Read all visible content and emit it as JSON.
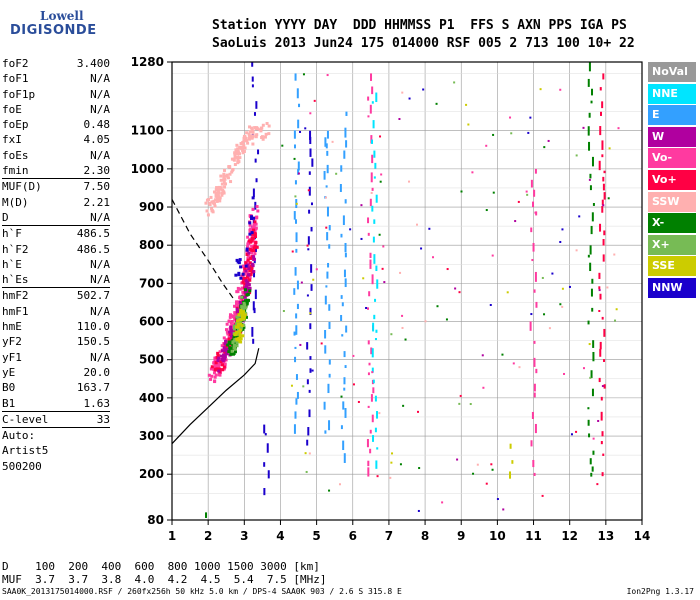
{
  "logo": {
    "line1": "Lowell",
    "line2": "DIGISONDE"
  },
  "header": {
    "line1": "Station YYYY DAY  DDD HHMMSS P1  FFS S AXN PPS IGA PS",
    "line2": "SaoLuis 2013 Jun24 175 014000 RSF 005 2 713 100 10+ 22"
  },
  "params": [
    {
      "key": "foF2",
      "value": "3.400"
    },
    {
      "key": "foF1",
      "value": "N/A"
    },
    {
      "key": "foF1p",
      "value": "N/A"
    },
    {
      "key": "foE",
      "value": "N/A"
    },
    {
      "key": "foEp",
      "value": "0.48"
    },
    {
      "key": "fxI",
      "value": "4.05"
    },
    {
      "key": "foEs",
      "value": "N/A"
    },
    {
      "key": "fmin",
      "value": "2.30",
      "sep": true
    },
    {
      "key": "MUF(D)",
      "value": "7.50"
    },
    {
      "key": "M(D)",
      "value": "2.21"
    },
    {
      "key": "D",
      "value": "N/A",
      "sep": true
    },
    {
      "key": "h`F",
      "value": "486.5"
    },
    {
      "key": "h`F2",
      "value": "486.5"
    },
    {
      "key": "h`E",
      "value": "N/A"
    },
    {
      "key": "h`Es",
      "value": "N/A",
      "sep": true
    },
    {
      "key": "hmF2",
      "value": "502.7"
    },
    {
      "key": "hmF1",
      "value": "N/A"
    },
    {
      "key": "hmE",
      "value": "110.0"
    },
    {
      "key": "yF2",
      "value": "150.5"
    },
    {
      "key": "yF1",
      "value": "N/A"
    },
    {
      "key": "yE",
      "value": "20.0"
    },
    {
      "key": "B0",
      "value": "163.7"
    },
    {
      "key": "B1",
      "value": "1.63",
      "sep": true
    },
    {
      "key": "C-level",
      "value": "33",
      "sep": true
    }
  ],
  "auto": {
    "line1": "Auto:",
    "line2": "Artist5",
    "line3": "500200"
  },
  "legend": [
    {
      "label": "NoVal",
      "color": "#999999"
    },
    {
      "label": "NNE",
      "color": "#00e5ff"
    },
    {
      "label": "E",
      "color": "#33a0ff"
    },
    {
      "label": "W",
      "color": "#b0009f"
    },
    {
      "label": "Vo-",
      "color": "#ff3aa0"
    },
    {
      "label": "Vo+",
      "color": "#ff0044"
    },
    {
      "label": "SSW",
      "color": "#ffb0b0"
    },
    {
      "label": "X-",
      "color": "#008000"
    },
    {
      "label": "X+",
      "color": "#77bb55"
    },
    {
      "label": "SSE",
      "color": "#cccc00"
    },
    {
      "label": "NNW",
      "color": "#1a00cc"
    }
  ],
  "dtable": {
    "line1": "D    100  200  400  600  800 1000 1500 3000 [km]",
    "line2": "MUF  3.7  3.7  3.8  4.0  4.2  4.5  5.4  7.5 [MHz]"
  },
  "footer": {
    "left": "SAA0K_2013175014000.RSF / 260fx256h 50 kHz 5.0 km / DPS-4 SAA0K 903 / 2.6 S 315.8 E",
    "right": "Ion2Png 1.3.17"
  },
  "chart_data": {
    "type": "scatter",
    "title": "",
    "xlabel": "",
    "ylabel": "",
    "xlim": [
      1,
      14
    ],
    "ylim": [
      80,
      1280
    ],
    "x_ticks": [
      1,
      2,
      3,
      4,
      5,
      6,
      7,
      8,
      9,
      10,
      11,
      12,
      13,
      14
    ],
    "y_ticks": [
      80,
      200,
      300,
      400,
      500,
      600,
      700,
      800,
      900,
      1000,
      1100,
      1280
    ],
    "trace_curve": [
      {
        "x": 1.0,
        "y": 280
      },
      {
        "x": 1.5,
        "y": 330
      },
      {
        "x": 2.0,
        "y": 375
      },
      {
        "x": 2.5,
        "y": 420
      },
      {
        "x": 3.0,
        "y": 460
      },
      {
        "x": 3.3,
        "y": 490
      },
      {
        "x": 3.4,
        "y": 530
      }
    ],
    "dashed_curve": [
      {
        "x": 1.0,
        "y": 920
      },
      {
        "x": 1.5,
        "y": 830
      },
      {
        "x": 2.0,
        "y": 760
      },
      {
        "x": 2.4,
        "y": 700
      },
      {
        "x": 2.7,
        "y": 660
      }
    ],
    "clusters": [
      {
        "name": "Vo-",
        "color": "#ff3aa0",
        "count": 260,
        "pts": [
          [
            2.1,
            460
          ],
          [
            2.4,
            500
          ],
          [
            2.6,
            560
          ],
          [
            2.8,
            620
          ],
          [
            3.0,
            700
          ],
          [
            3.2,
            800
          ],
          [
            3.3,
            880
          ]
        ],
        "spread": [
          0.12,
          25
        ]
      },
      {
        "name": "Vo+",
        "color": "#ff0044",
        "count": 140,
        "pts": [
          [
            2.2,
            470
          ],
          [
            2.6,
            540
          ],
          [
            2.9,
            620
          ],
          [
            3.1,
            720
          ],
          [
            3.3,
            840
          ]
        ],
        "spread": [
          0.1,
          25
        ]
      },
      {
        "name": "W",
        "color": "#b0009f",
        "count": 120,
        "pts": [
          [
            2.3,
            480
          ],
          [
            2.7,
            560
          ],
          [
            3.0,
            650
          ],
          [
            3.2,
            760
          ]
        ],
        "spread": [
          0.1,
          25
        ]
      },
      {
        "name": "X-",
        "color": "#008000",
        "count": 90,
        "pts": [
          [
            2.6,
            520
          ],
          [
            2.9,
            600
          ],
          [
            3.1,
            680
          ]
        ],
        "spread": [
          0.08,
          25
        ]
      },
      {
        "name": "X+",
        "color": "#77bb55",
        "count": 60,
        "pts": [
          [
            2.7,
            540
          ],
          [
            3.0,
            640
          ]
        ],
        "spread": [
          0.08,
          25
        ]
      },
      {
        "name": "SSE",
        "color": "#cccc00",
        "count": 40,
        "pts": [
          [
            2.8,
            560
          ],
          [
            3.0,
            620
          ]
        ],
        "spread": [
          0.08,
          25
        ]
      },
      {
        "name": "SSW",
        "color": "#ffb0b0",
        "count": 150,
        "pts": [
          [
            2.0,
            890
          ],
          [
            2.3,
            940
          ],
          [
            2.6,
            1000
          ],
          [
            2.9,
            1050
          ],
          [
            3.2,
            1090
          ],
          [
            3.6,
            1100
          ]
        ],
        "spread": [
          0.1,
          20
        ]
      },
      {
        "name": "NNW",
        "color": "#1a00cc",
        "count": 20,
        "pts": [
          [
            2.8,
            720
          ],
          [
            3.3,
            880
          ]
        ],
        "spread": [
          0.05,
          60
        ]
      }
    ],
    "vertical_streaks": [
      {
        "x": 4.45,
        "y0": 300,
        "y1": 1250,
        "color": "#33a0ff"
      },
      {
        "x": 4.8,
        "y0": 250,
        "y1": 1100,
        "color": "#1a00cc"
      },
      {
        "x": 3.3,
        "y0": 550,
        "y1": 1280,
        "color": "#1a00cc"
      },
      {
        "x": 5.75,
        "y0": 250,
        "y1": 1150,
        "color": "#33a0ff"
      },
      {
        "x": 6.5,
        "y0": 200,
        "y1": 1250,
        "color": "#ff3aa0"
      },
      {
        "x": 6.6,
        "y0": 220,
        "y1": 1200,
        "color": "#00e5ff"
      },
      {
        "x": 5.3,
        "y0": 300,
        "y1": 1100,
        "color": "#33a0ff"
      },
      {
        "x": 11.0,
        "y0": 180,
        "y1": 1000,
        "color": "#ff3aa0"
      },
      {
        "x": 12.6,
        "y0": 200,
        "y1": 1280,
        "color": "#008000"
      },
      {
        "x": 12.9,
        "y0": 200,
        "y1": 1250,
        "color": "#ff0044"
      },
      {
        "x": 10.4,
        "y0": 195,
        "y1": 280,
        "color": "#cccc00"
      },
      {
        "x": 3.6,
        "y0": 160,
        "y1": 330,
        "color": "#1a00cc"
      },
      {
        "x": 1.9,
        "y0": 80,
        "y1": 100,
        "color": "#008000"
      }
    ]
  }
}
